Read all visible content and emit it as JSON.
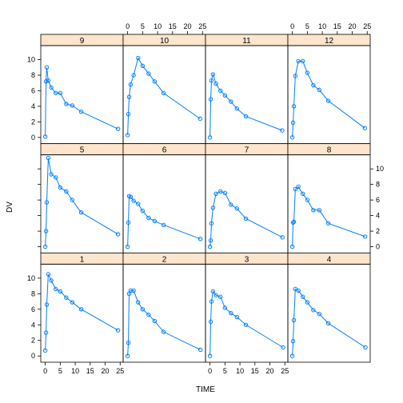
{
  "chart_data": {
    "type": "line",
    "xlabel": "TIME",
    "ylabel": "DV",
    "xlim": [
      -1.5,
      26
    ],
    "ylim": [
      -0.8,
      11.8
    ],
    "x_ticks": [
      0,
      5,
      10,
      15,
      20,
      25
    ],
    "y_ticks": [
      0,
      2,
      4,
      6,
      8,
      10
    ],
    "grid": false,
    "colors": {
      "line": "#0080ff",
      "strip": "#ffe5cc",
      "frame": "#000000"
    },
    "layout": {
      "rows": 3,
      "cols": 4
    },
    "panels": [
      {
        "id": "9",
        "x": [
          0,
          0.25,
          0.5,
          1,
          2,
          3.5,
          5,
          7,
          9,
          12,
          24.3
        ],
        "y": [
          0.1,
          7.2,
          9,
          7.3,
          6.4,
          5.7,
          5.7,
          4.3,
          4.1,
          3.3,
          1.1
        ]
      },
      {
        "id": "10",
        "x": [
          0,
          0.25,
          0.5,
          1,
          2,
          3.5,
          5,
          7,
          9,
          12,
          24.2
        ],
        "y": [
          0.3,
          3,
          5.2,
          6.8,
          8,
          10.2,
          9.2,
          8.2,
          7.2,
          5.7,
          2.4
        ]
      },
      {
        "id": "11",
        "x": [
          0,
          0.25,
          0.5,
          1,
          2,
          3.5,
          5,
          7,
          9,
          12,
          24.1
        ],
        "y": [
          0,
          4.9,
          7.3,
          8.1,
          6.9,
          6,
          5.4,
          4.6,
          3.7,
          2.7,
          0.9
        ]
      },
      {
        "id": "12",
        "x": [
          0,
          0.25,
          0.5,
          1,
          2,
          3.5,
          5,
          7,
          9,
          12,
          24.2
        ],
        "y": [
          0,
          1.9,
          4,
          7.9,
          9.8,
          9.8,
          8.3,
          6.7,
          6.1,
          4.7,
          1.2
        ]
      },
      {
        "id": "5",
        "x": [
          0,
          0.25,
          0.5,
          1,
          2,
          3.5,
          5,
          7,
          9,
          12,
          24.3
        ],
        "y": [
          0,
          2,
          5.7,
          11.4,
          9.3,
          8.9,
          7.6,
          7.1,
          6,
          4.4,
          1.6
        ]
      },
      {
        "id": "6",
        "x": [
          0,
          0.25,
          0.5,
          1,
          2,
          3.5,
          5,
          7,
          9,
          12,
          24.3
        ],
        "y": [
          0,
          3.1,
          6.5,
          6.4,
          5.9,
          5.5,
          4.6,
          3.7,
          3.3,
          2.8,
          1
        ]
      },
      {
        "id": "7",
        "x": [
          0,
          0.25,
          0.5,
          1,
          2,
          3.5,
          5,
          7,
          9,
          12,
          24.2
        ],
        "y": [
          0,
          0.8,
          3,
          5,
          6.8,
          7.1,
          6.9,
          5.4,
          4.9,
          3.6,
          1.2
        ]
      },
      {
        "id": "8",
        "x": [
          0,
          0.25,
          0.5,
          1,
          2,
          3.5,
          5,
          7,
          9,
          12,
          24.3
        ],
        "y": [
          0,
          3.1,
          3.2,
          7.4,
          7.7,
          6.8,
          6,
          4.7,
          4.7,
          3,
          1.3
        ]
      },
      {
        "id": "1",
        "x": [
          0,
          0.25,
          0.5,
          1,
          2,
          3.5,
          5,
          7,
          9,
          12,
          24.3
        ],
        "y": [
          0.7,
          3,
          6.6,
          10.5,
          9.7,
          8.6,
          8.3,
          7.5,
          6.9,
          6,
          3.3
        ]
      },
      {
        "id": "2",
        "x": [
          0,
          0.25,
          0.5,
          1,
          2,
          3.5,
          5,
          7,
          9,
          12,
          24.3
        ],
        "y": [
          0,
          1.7,
          8,
          8.4,
          8.4,
          6.9,
          6,
          5.3,
          4.5,
          3.1,
          0.8
        ]
      },
      {
        "id": "3",
        "x": [
          0,
          0.25,
          0.5,
          1,
          2,
          3.5,
          5,
          7,
          9,
          12,
          24.4
        ],
        "y": [
          0,
          4.4,
          7,
          8.3,
          7.8,
          7.6,
          6.2,
          5.5,
          5,
          4,
          1.1
        ]
      },
      {
        "id": "4",
        "x": [
          0,
          0.25,
          0.5,
          1,
          2,
          3.5,
          5,
          7,
          9,
          12,
          24.4
        ],
        "y": [
          0,
          1.9,
          4.6,
          8.6,
          8.4,
          7.6,
          6.9,
          5.9,
          5.4,
          4.2,
          1.1
        ]
      }
    ]
  }
}
